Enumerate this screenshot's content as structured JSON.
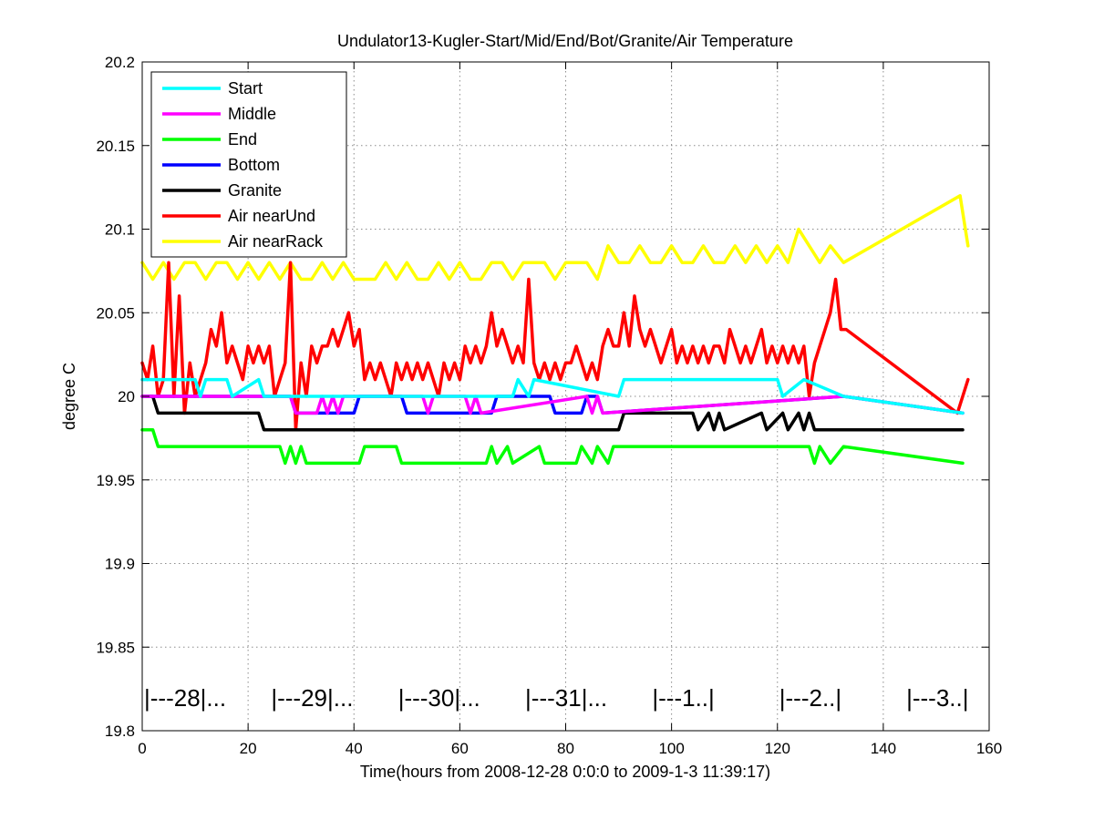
{
  "chart_data": {
    "type": "line",
    "title": "Undulator13-Kugler-Start/Mid/End/Bot/Granite/Air Temperature",
    "xlabel": "Time(hours from 2008-12-28 0:0:0 to 2009-1-3 11:39:17)",
    "ylabel": "degree C",
    "xlim": [
      0,
      160
    ],
    "ylim": [
      19.8,
      20.2
    ],
    "xticks": [
      0,
      20,
      40,
      60,
      80,
      100,
      120,
      140,
      160
    ],
    "xtick_labels": [
      "0",
      "20",
      "40",
      "60",
      "80",
      "100",
      "120",
      "140",
      "160"
    ],
    "yticks": [
      19.8,
      19.85,
      19.9,
      19.95,
      20,
      20.05,
      20.1,
      20.15,
      20.2
    ],
    "ytick_labels": [
      "19.8",
      "19.85",
      "19.9",
      "19.95",
      "20",
      "20.05",
      "20.1",
      "20.15",
      "20.2"
    ],
    "grid": true,
    "legend_position": "top-left",
    "day_markers": [
      {
        "x": 0,
        "label": "|---28|..."
      },
      {
        "x": 24,
        "label": "|---29|..."
      },
      {
        "x": 48,
        "label": "|---30|..."
      },
      {
        "x": 72,
        "label": "|---31|..."
      },
      {
        "x": 96,
        "label": "|---1..|"
      },
      {
        "x": 120,
        "label": "|---2..|"
      },
      {
        "x": 144,
        "label": "|---3..|"
      }
    ],
    "series": [
      {
        "name": "Start",
        "color": "#00ffff",
        "x": [
          0,
          10,
          11,
          12,
          16,
          17,
          22,
          23,
          70,
          71,
          73,
          74,
          90,
          91,
          120,
          121,
          125,
          132.5,
          155
        ],
        "y": [
          20.01,
          20.01,
          20.0,
          20.01,
          20.01,
          20.0,
          20.01,
          20.0,
          20.0,
          20.01,
          20.0,
          20.01,
          20.0,
          20.01,
          20.01,
          20.0,
          20.01,
          20.0,
          19.99
        ]
      },
      {
        "name": "Middle",
        "color": "#ff00ff",
        "x": [
          0,
          28,
          29,
          33,
          34,
          35,
          36,
          37,
          38,
          53,
          54,
          55,
          61,
          62,
          63,
          64,
          84,
          85,
          86,
          87,
          132.5,
          155
        ],
        "y": [
          20.0,
          20.0,
          19.99,
          19.99,
          20.0,
          19.99,
          20.0,
          19.99,
          20.0,
          20.0,
          19.99,
          20.0,
          20.0,
          19.99,
          20.0,
          19.99,
          20.0,
          19.99,
          20.0,
          19.99,
          20.0,
          19.99
        ]
      },
      {
        "name": "End",
        "color": "#00ff00",
        "x": [
          0,
          2,
          3,
          26,
          27,
          28,
          29,
          30,
          31,
          41,
          42,
          48,
          49,
          65,
          66,
          67,
          69,
          70,
          75,
          76,
          82,
          83,
          85,
          86,
          88,
          89,
          126,
          127,
          128,
          130,
          132.5,
          155
        ],
        "y": [
          19.98,
          19.98,
          19.97,
          19.97,
          19.96,
          19.97,
          19.96,
          19.97,
          19.96,
          19.96,
          19.97,
          19.97,
          19.96,
          19.96,
          19.97,
          19.96,
          19.97,
          19.96,
          19.97,
          19.96,
          19.96,
          19.97,
          19.96,
          19.97,
          19.96,
          19.97,
          19.97,
          19.96,
          19.97,
          19.96,
          19.97,
          19.96
        ]
      },
      {
        "name": "Bottom",
        "color": "#0000ff",
        "x": [
          0,
          28,
          29,
          40,
          41,
          49,
          50,
          66,
          67,
          77,
          78,
          83,
          84,
          86,
          87,
          132.5,
          155
        ],
        "y": [
          20.0,
          20.0,
          19.99,
          19.99,
          20.0,
          20.0,
          19.99,
          19.99,
          20.0,
          20.0,
          19.99,
          19.99,
          20.0,
          20.0,
          19.99,
          20.0,
          19.99
        ]
      },
      {
        "name": "Granite",
        "color": "#000000",
        "x": [
          0,
          2,
          3,
          22,
          23,
          28,
          29,
          90,
          91,
          104,
          105,
          107,
          108,
          109,
          110,
          117,
          118,
          121,
          122,
          124,
          125,
          126,
          127,
          130,
          155
        ],
        "y": [
          20.0,
          20.0,
          19.99,
          19.99,
          19.98,
          19.98,
          19.98,
          19.98,
          19.99,
          19.99,
          19.98,
          19.99,
          19.98,
          19.99,
          19.98,
          19.99,
          19.98,
          19.99,
          19.98,
          19.99,
          19.98,
          19.99,
          19.98,
          19.98,
          19.98
        ]
      },
      {
        "name": "Air nearUnd",
        "color": "#ff0000",
        "x": [
          0,
          1,
          2,
          3,
          4,
          5,
          6,
          7,
          8,
          9,
          10,
          11,
          12,
          13,
          14,
          15,
          16,
          17,
          18,
          19,
          20,
          21,
          22,
          23,
          24,
          25,
          26,
          27,
          28,
          29,
          30,
          31,
          32,
          33,
          34,
          35,
          36,
          37,
          38,
          39,
          40,
          41,
          42,
          43,
          44,
          45,
          46,
          47,
          48,
          49,
          50,
          51,
          52,
          53,
          54,
          55,
          56,
          57,
          58,
          59,
          60,
          61,
          62,
          63,
          64,
          65,
          66,
          67,
          68,
          69,
          70,
          71,
          72,
          73,
          74,
          75,
          76,
          77,
          78,
          79,
          80,
          81,
          82,
          83,
          84,
          85,
          86,
          87,
          88,
          89,
          90,
          91,
          92,
          93,
          94,
          95,
          96,
          97,
          98,
          99,
          100,
          101,
          102,
          103,
          104,
          105,
          106,
          107,
          108,
          109,
          110,
          111,
          112,
          113,
          114,
          115,
          116,
          117,
          118,
          119,
          120,
          121,
          122,
          123,
          124,
          125,
          126,
          127,
          128,
          129,
          130,
          131,
          132,
          133,
          154,
          155,
          156
        ],
        "y": [
          20.02,
          20.01,
          20.03,
          20.0,
          20.01,
          20.08,
          20.0,
          20.06,
          19.99,
          20.02,
          20.0,
          20.01,
          20.02,
          20.04,
          20.03,
          20.05,
          20.02,
          20.03,
          20.02,
          20.01,
          20.03,
          20.02,
          20.03,
          20.02,
          20.03,
          20.0,
          20.01,
          20.02,
          20.08,
          19.98,
          20.02,
          20.0,
          20.03,
          20.02,
          20.03,
          20.03,
          20.04,
          20.03,
          20.04,
          20.05,
          20.03,
          20.04,
          20.01,
          20.02,
          20.01,
          20.02,
          20.01,
          20.0,
          20.02,
          20.01,
          20.02,
          20.01,
          20.02,
          20.01,
          20.02,
          20.01,
          20.0,
          20.02,
          20.01,
          20.02,
          20.01,
          20.03,
          20.02,
          20.03,
          20.02,
          20.03,
          20.05,
          20.03,
          20.04,
          20.03,
          20.02,
          20.03,
          20.02,
          20.07,
          20.02,
          20.01,
          20.02,
          20.01,
          20.02,
          20.01,
          20.02,
          20.02,
          20.03,
          20.02,
          20.01,
          20.02,
          20.01,
          20.03,
          20.04,
          20.03,
          20.03,
          20.05,
          20.03,
          20.06,
          20.04,
          20.03,
          20.04,
          20.03,
          20.02,
          20.03,
          20.04,
          20.02,
          20.03,
          20.02,
          20.03,
          20.02,
          20.03,
          20.02,
          20.03,
          20.03,
          20.02,
          20.04,
          20.03,
          20.02,
          20.03,
          20.02,
          20.03,
          20.04,
          20.02,
          20.03,
          20.02,
          20.03,
          20.02,
          20.03,
          20.02,
          20.03,
          20.0,
          20.02,
          20.03,
          20.04,
          20.05,
          20.07,
          20.04,
          20.04,
          19.99,
          20.0,
          20.01
        ]
      },
      {
        "name": "Air nearRack",
        "color": "#ffff00",
        "x": [
          0,
          2,
          4,
          6,
          8,
          10,
          12,
          14,
          16,
          18,
          20,
          22,
          24,
          26,
          28,
          30,
          32,
          34,
          36,
          38,
          40,
          42,
          44,
          46,
          48,
          50,
          52,
          54,
          56,
          58,
          60,
          62,
          64,
          66,
          68,
          70,
          72,
          74,
          76,
          78,
          80,
          82,
          84,
          86,
          88,
          90,
          92,
          94,
          96,
          98,
          100,
          102,
          104,
          106,
          108,
          110,
          112,
          114,
          116,
          118,
          120,
          122,
          124,
          126,
          128,
          130,
          132.5,
          154.5,
          155.5,
          156
        ],
        "y": [
          20.08,
          20.07,
          20.08,
          20.07,
          20.08,
          20.08,
          20.07,
          20.08,
          20.08,
          20.07,
          20.08,
          20.07,
          20.08,
          20.07,
          20.08,
          20.07,
          20.07,
          20.08,
          20.07,
          20.08,
          20.07,
          20.07,
          20.07,
          20.08,
          20.07,
          20.08,
          20.07,
          20.07,
          20.08,
          20.07,
          20.08,
          20.07,
          20.07,
          20.08,
          20.08,
          20.07,
          20.08,
          20.08,
          20.08,
          20.07,
          20.08,
          20.08,
          20.08,
          20.07,
          20.09,
          20.08,
          20.08,
          20.09,
          20.08,
          20.08,
          20.09,
          20.08,
          20.08,
          20.09,
          20.08,
          20.08,
          20.09,
          20.08,
          20.09,
          20.08,
          20.09,
          20.08,
          20.1,
          20.09,
          20.08,
          20.09,
          20.08,
          20.12,
          20.1,
          20.09
        ]
      }
    ]
  }
}
